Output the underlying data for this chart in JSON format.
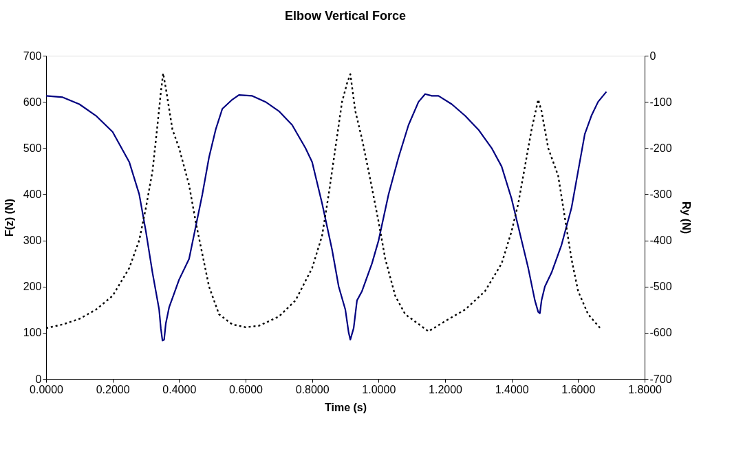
{
  "chart_data": {
    "type": "line",
    "title": "Elbow Vertical Force",
    "xlabel": "Time (s)",
    "ylabel": "F(z) (N)",
    "y2label": "Ry (N)",
    "xlim": [
      0,
      1.8
    ],
    "xticks": [
      {
        "value": 0,
        "label": "0.0000"
      },
      {
        "value": 0.2,
        "label": "0.2000"
      },
      {
        "value": 0.4,
        "label": "0.4000"
      },
      {
        "value": 0.6,
        "label": "0.6000"
      },
      {
        "value": 0.8,
        "label": "0.8000"
      },
      {
        "value": 1.0,
        "label": "1.0000"
      },
      {
        "value": 1.2,
        "label": "1.2000"
      },
      {
        "value": 1.4,
        "label": "1.4000"
      },
      {
        "value": 1.6,
        "label": "1.6000"
      },
      {
        "value": 1.8,
        "label": "1.8000"
      }
    ],
    "ylim": [
      0,
      700
    ],
    "yticks": [
      0,
      100,
      200,
      300,
      400,
      500,
      600,
      700
    ],
    "y2lim": [
      -700,
      0
    ],
    "y2ticks": [
      -700,
      -600,
      -500,
      -400,
      -300,
      -200,
      -100,
      0
    ],
    "grid": false,
    "marker": "none",
    "series": [
      {
        "color": "#000080",
        "line_style": "solid",
        "x": [
          0,
          0.05,
          0.1,
          0.15,
          0.2,
          0.25,
          0.28,
          0.3,
          0.32,
          0.34,
          0.345,
          0.35,
          0.355,
          0.36,
          0.37,
          0.4,
          0.43,
          0.45,
          0.47,
          0.49,
          0.51,
          0.53,
          0.56,
          0.58,
          0.62,
          0.66,
          0.7,
          0.74,
          0.78,
          0.8,
          0.83,
          0.86,
          0.88,
          0.9,
          0.91,
          0.915,
          0.925,
          0.935,
          0.95,
          0.98,
          1.0,
          1.03,
          1.06,
          1.09,
          1.12,
          1.14,
          1.16,
          1.18,
          1.22,
          1.26,
          1.3,
          1.34,
          1.37,
          1.4,
          1.42,
          1.45,
          1.47,
          1.48,
          1.485,
          1.49,
          1.5,
          1.52,
          1.55,
          1.58,
          1.6,
          1.62,
          1.64,
          1.66,
          1.685
        ],
        "values": [
          613,
          610,
          595,
          570,
          535,
          470,
          400,
          320,
          230,
          150,
          110,
          83,
          85,
          120,
          155,
          215,
          260,
          330,
          400,
          480,
          540,
          585,
          605,
          615,
          613,
          600,
          580,
          550,
          500,
          470,
          380,
          280,
          200,
          150,
          100,
          85,
          110,
          170,
          190,
          250,
          300,
          400,
          480,
          550,
          600,
          617,
          613,
          613,
          595,
          570,
          540,
          500,
          460,
          390,
          330,
          240,
          170,
          145,
          142,
          170,
          200,
          230,
          290,
          370,
          450,
          530,
          570,
          600,
          622
        ]
      },
      {
        "color": "#000000",
        "line_style": "dotted",
        "axis": "y2",
        "x": [
          0,
          0.05,
          0.1,
          0.15,
          0.2,
          0.25,
          0.28,
          0.3,
          0.32,
          0.335,
          0.345,
          0.352,
          0.36,
          0.38,
          0.4,
          0.43,
          0.45,
          0.47,
          0.49,
          0.52,
          0.56,
          0.6,
          0.64,
          0.7,
          0.75,
          0.8,
          0.83,
          0.85,
          0.87,
          0.89,
          0.905,
          0.915,
          0.93,
          0.95,
          0.97,
          1.0,
          1.02,
          1.05,
          1.08,
          1.15,
          1.2,
          1.26,
          1.32,
          1.37,
          1.4,
          1.42,
          1.44,
          1.46,
          1.48,
          1.49,
          1.51,
          1.54,
          1.56,
          1.58,
          1.6,
          1.63,
          1.67
        ],
        "values": [
          -590,
          -582,
          -570,
          -550,
          -520,
          -460,
          -400,
          -330,
          -250,
          -150,
          -80,
          -38,
          -70,
          -160,
          -200,
          -280,
          -360,
          -430,
          -500,
          -560,
          -582,
          -588,
          -585,
          -565,
          -530,
          -460,
          -390,
          -300,
          -200,
          -100,
          -60,
          -40,
          -120,
          -180,
          -250,
          -360,
          -440,
          -520,
          -560,
          -597,
          -575,
          -550,
          -510,
          -450,
          -380,
          -320,
          -240,
          -160,
          -95,
          -120,
          -200,
          -260,
          -350,
          -440,
          -510,
          -560,
          -593
        ]
      }
    ]
  }
}
